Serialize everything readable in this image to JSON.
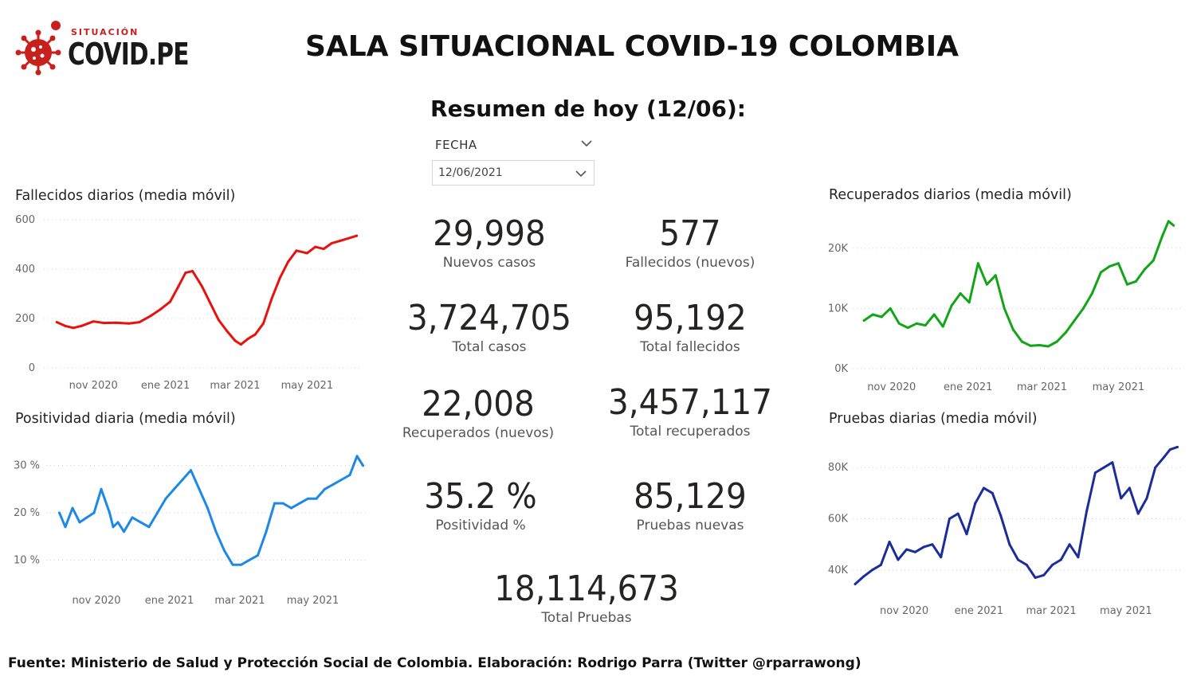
{
  "logo": {
    "small": "SITUACIÓN",
    "big": "COVID.PE",
    "color": "#c8201d"
  },
  "title": "SALA SITUACIONAL COVID-19 COLOMBIA",
  "subtitle": "Resumen de hoy (12/06):",
  "filter": {
    "label": "FECHA",
    "value": "12/06/2021"
  },
  "kpis": {
    "nuevos_casos": {
      "value": "29,998",
      "label": "Nuevos casos"
    },
    "fallecidos_nuevos": {
      "value": "577",
      "label": "Fallecidos (nuevos)"
    },
    "total_casos": {
      "value": "3,724,705",
      "label": "Total casos"
    },
    "total_fallecidos": {
      "value": "95,192",
      "label": "Total fallecidos"
    },
    "recuperados_nuevos": {
      "value": "22,008",
      "label": "Recuperados (nuevos)"
    },
    "total_recuperados": {
      "value": "3,457,117",
      "label": "Total recuperados"
    },
    "positividad": {
      "value": "35.2 %",
      "label": "Positividad %"
    },
    "pruebas_nuevas": {
      "value": "85,129",
      "label": "Pruebas nuevas"
    },
    "total_pruebas": {
      "value": "18,114,673",
      "label": "Total Pruebas"
    }
  },
  "footer": "Fuente: Ministerio de Salud y Protección Social de Colombia. Elaboración: Rodrigo Parra (Twitter @rparrawong)",
  "chart_data": [
    {
      "id": "fallecidos",
      "type": "line",
      "title": "Fallecidos diarios (media móvil)",
      "color": "#e8120c",
      "xlim": [
        "2020-09-20",
        "2021-06-15"
      ],
      "ylim": [
        0,
        600
      ],
      "yticks": [
        0,
        200,
        400,
        600
      ],
      "ytick_labels": [
        "0",
        "200",
        "400",
        "600"
      ],
      "xticks": [
        "2020-11-01",
        "2021-01-01",
        "2021-03-01",
        "2021-05-01"
      ],
      "xtick_labels": [
        "nov 2020",
        "ene 2021",
        "mar 2021",
        "may 2021"
      ],
      "grid": true,
      "x": [
        "2020-10-01",
        "2020-10-08",
        "2020-10-15",
        "2020-10-22",
        "2020-11-01",
        "2020-11-10",
        "2020-11-20",
        "2020-12-01",
        "2020-12-10",
        "2020-12-20",
        "2020-12-28",
        "2021-01-05",
        "2021-01-12",
        "2021-01-18",
        "2021-01-24",
        "2021-02-01",
        "2021-02-08",
        "2021-02-15",
        "2021-02-22",
        "2021-03-01",
        "2021-03-06",
        "2021-03-12",
        "2021-03-18",
        "2021-03-25",
        "2021-04-01",
        "2021-04-08",
        "2021-04-15",
        "2021-04-22",
        "2021-05-01",
        "2021-05-08",
        "2021-05-15",
        "2021-05-22",
        "2021-05-29",
        "2021-06-05",
        "2021-06-12"
      ],
      "y": [
        185,
        170,
        162,
        170,
        188,
        182,
        183,
        180,
        185,
        212,
        238,
        268,
        330,
        385,
        392,
        330,
        262,
        195,
        150,
        110,
        95,
        118,
        135,
        180,
        280,
        365,
        430,
        475,
        465,
        490,
        482,
        505,
        515,
        525,
        535
      ]
    },
    {
      "id": "positividad",
      "type": "line",
      "title": "Positividad diaria (media móvil)",
      "color": "#1c88e8",
      "xlim": [
        "2020-09-20",
        "2021-06-15"
      ],
      "ylim": [
        5,
        35
      ],
      "yticks": [
        10,
        20,
        30
      ],
      "ytick_labels": [
        "10 %",
        "20 %",
        "30 %"
      ],
      "xticks": [
        "2020-11-01",
        "2021-01-01",
        "2021-03-01",
        "2021-05-01"
      ],
      "xtick_labels": [
        "nov 2020",
        "ene 2021",
        "mar 2021",
        "may 2021"
      ],
      "grid": true,
      "x": [
        "2020-10-01",
        "2020-10-06",
        "2020-10-12",
        "2020-10-18",
        "2020-10-24",
        "2020-10-30",
        "2020-11-05",
        "2020-11-12",
        "2020-11-15",
        "2020-11-19",
        "2020-11-24",
        "2020-12-01",
        "2020-12-08",
        "2020-12-15",
        "2020-12-22",
        "2020-12-29",
        "2021-01-05",
        "2021-01-12",
        "2021-01-19",
        "2021-01-26",
        "2021-02-02",
        "2021-02-09",
        "2021-02-16",
        "2021-02-23",
        "2021-03-02",
        "2021-03-09",
        "2021-03-16",
        "2021-03-23",
        "2021-03-30",
        "2021-04-06",
        "2021-04-13",
        "2021-04-20",
        "2021-04-27",
        "2021-05-04",
        "2021-05-11",
        "2021-05-18",
        "2021-05-25",
        "2021-06-01",
        "2021-06-07",
        "2021-06-12"
      ],
      "y": [
        20,
        17,
        21,
        18,
        19,
        20,
        25,
        20,
        17,
        18,
        16,
        19,
        18,
        17,
        20,
        23,
        25,
        27,
        29,
        25,
        21,
        16,
        12,
        9,
        9,
        10,
        11,
        16,
        22,
        22,
        21,
        22,
        23,
        23,
        25,
        26,
        27,
        28,
        32,
        30
      ]
    },
    {
      "id": "recuperados",
      "type": "line",
      "title": "Recuperados diarios (media móvil)",
      "color": "#12a518",
      "xlim": [
        "2020-10-01",
        "2021-06-20"
      ],
      "ylim": [
        0,
        25000
      ],
      "yticks": [
        0,
        10000,
        20000
      ],
      "ytick_labels": [
        "0K",
        "10K",
        "20K"
      ],
      "xticks": [
        "2020-11-01",
        "2021-01-01",
        "2021-03-01",
        "2021-05-01"
      ],
      "xtick_labels": [
        "nov 2020",
        "ene 2021",
        "mar 2021",
        "may 2021"
      ],
      "grid": true,
      "x": [
        "2020-10-10",
        "2020-10-17",
        "2020-10-24",
        "2020-10-31",
        "2020-11-07",
        "2020-11-14",
        "2020-11-21",
        "2020-11-28",
        "2020-12-05",
        "2020-12-12",
        "2020-12-19",
        "2020-12-26",
        "2021-01-02",
        "2021-01-09",
        "2021-01-16",
        "2021-01-23",
        "2021-01-30",
        "2021-02-06",
        "2021-02-13",
        "2021-02-20",
        "2021-02-27",
        "2021-03-06",
        "2021-03-13",
        "2021-03-20",
        "2021-03-27",
        "2021-04-03",
        "2021-04-10",
        "2021-04-17",
        "2021-04-24",
        "2021-05-01",
        "2021-05-08",
        "2021-05-15",
        "2021-05-22",
        "2021-05-29",
        "2021-06-05",
        "2021-06-10",
        "2021-06-14"
      ],
      "y": [
        8000,
        9000,
        8600,
        10000,
        7500,
        6800,
        7500,
        7200,
        9000,
        7000,
        10500,
        12500,
        11000,
        17500,
        14000,
        15500,
        10000,
        6500,
        4500,
        3800,
        3900,
        3700,
        4500,
        6000,
        8000,
        10000,
        12500,
        16000,
        17000,
        17500,
        14000,
        14500,
        16500,
        18000,
        22000,
        24500,
        23800
      ]
    },
    {
      "id": "pruebas",
      "type": "line",
      "title": "Pruebas diarias (media móvil)",
      "color": "#1a2d9a",
      "xlim": [
        "2020-09-20",
        "2021-06-15"
      ],
      "ylim": [
        30000,
        90000
      ],
      "yticks": [
        40000,
        60000,
        80000
      ],
      "ytick_labels": [
        "40K",
        "60K",
        "80K"
      ],
      "xticks": [
        "2020-11-01",
        "2021-01-01",
        "2021-03-01",
        "2021-05-01"
      ],
      "xtick_labels": [
        "nov 2020",
        "ene 2021",
        "mar 2021",
        "may 2021"
      ],
      "grid": true,
      "x": [
        "2020-09-22",
        "2020-09-29",
        "2020-10-06",
        "2020-10-13",
        "2020-10-20",
        "2020-10-27",
        "2020-11-03",
        "2020-11-10",
        "2020-11-17",
        "2020-11-24",
        "2020-12-01",
        "2020-12-08",
        "2020-12-15",
        "2020-12-22",
        "2020-12-29",
        "2021-01-05",
        "2021-01-12",
        "2021-01-19",
        "2021-01-26",
        "2021-02-02",
        "2021-02-09",
        "2021-02-16",
        "2021-02-23",
        "2021-03-02",
        "2021-03-09",
        "2021-03-16",
        "2021-03-23",
        "2021-03-30",
        "2021-04-06",
        "2021-04-13",
        "2021-04-20",
        "2021-04-27",
        "2021-05-04",
        "2021-05-11",
        "2021-05-18",
        "2021-05-25",
        "2021-06-01",
        "2021-06-06",
        "2021-06-12"
      ],
      "y": [
        34500,
        37500,
        40000,
        42000,
        51000,
        44000,
        48000,
        47000,
        49000,
        50000,
        45000,
        60000,
        62000,
        54000,
        66000,
        72000,
        70000,
        61000,
        50000,
        44000,
        42000,
        37000,
        38000,
        42000,
        44000,
        50000,
        45000,
        63000,
        78000,
        80000,
        82000,
        68000,
        72000,
        62000,
        68000,
        80000,
        84000,
        87000,
        88000
      ]
    }
  ]
}
